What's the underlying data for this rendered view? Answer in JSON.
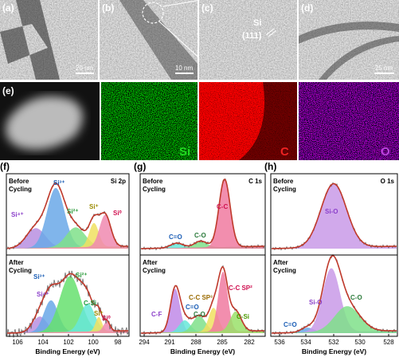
{
  "tem": [
    {
      "label": "(a)",
      "scale": "20 nm"
    },
    {
      "label": "(b)",
      "scale": "10 nm"
    },
    {
      "label": "(c)",
      "element": "Si",
      "plane": "(111)"
    },
    {
      "label": "(d)",
      "scale": "25 nm"
    }
  ],
  "mapping": {
    "label": "(e)",
    "elements": [
      "Si",
      "C",
      "O"
    ]
  },
  "xps": [
    {
      "label": "(f)",
      "core": "Si 2p",
      "before": [
        "Before",
        "Cycling"
      ],
      "after": [
        "After",
        "Cycling"
      ],
      "before_peaks": [
        "Si⁴⁺",
        "Si³⁺",
        "Si²⁺",
        "Si⁺",
        "Si⁰"
      ],
      "after_peaks": [
        "Si⁴⁺",
        "Si³⁺",
        "Si²⁺",
        "C-Si",
        "Si⁺",
        "Si⁰"
      ],
      "xticks": [
        106,
        104,
        102,
        100,
        98
      ],
      "xlabel": "Binding Energy (eV)"
    },
    {
      "label": "(g)",
      "core": "C 1s",
      "before": [
        "Before",
        "Cycling"
      ],
      "after": [
        "After",
        "Cycling"
      ],
      "before_peaks": [
        "C=O",
        "C-O",
        "C-C"
      ],
      "after_peaks": [
        "C-F",
        "C=O",
        "C-O",
        "C-C SP³",
        "C-C SP²",
        "C-Si"
      ],
      "xticks": [
        294,
        291,
        288,
        285,
        282
      ],
      "xlabel": "Binding Energy (eV)"
    },
    {
      "label": "(h)",
      "core": "O 1s",
      "before": [
        "Before",
        "Cycling"
      ],
      "after": [
        "After",
        "Cycling"
      ],
      "before_peaks": [
        "Si-O"
      ],
      "after_peaks": [
        "C=O",
        "Si-O",
        "C-O"
      ],
      "xticks": [
        536,
        534,
        532,
        530,
        528
      ],
      "xlabel": "Binding Energy (eV)"
    }
  ]
}
